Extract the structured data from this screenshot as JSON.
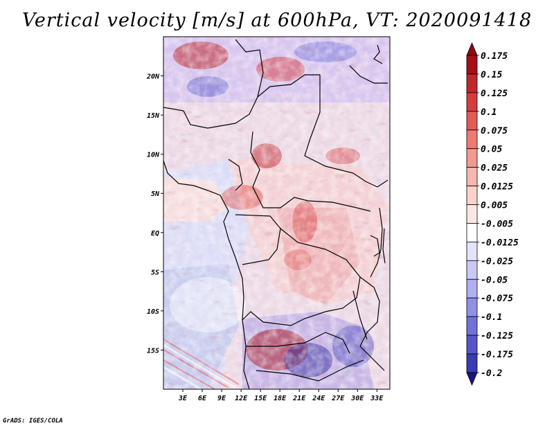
{
  "title": "Vertical velocity [m/s] at 600hPa, VT: 2020091418",
  "credit": "GrADS: IGES/COLA",
  "map": {
    "lon_range": [
      0,
      35
    ],
    "lat_range": [
      -20,
      25
    ],
    "lat_ticks": [
      {
        "value": 20,
        "label": "20N"
      },
      {
        "value": 15,
        "label": "15N"
      },
      {
        "value": 10,
        "label": "10N"
      },
      {
        "value": 5,
        "label": "5N"
      },
      {
        "value": 0,
        "label": "EQ"
      },
      {
        "value": -5,
        "label": "5S"
      },
      {
        "value": -10,
        "label": "10S"
      },
      {
        "value": -15,
        "label": "15S"
      }
    ],
    "lon_ticks": [
      {
        "value": 3,
        "label": "3E"
      },
      {
        "value": 6,
        "label": "6E"
      },
      {
        "value": 9,
        "label": "9E"
      },
      {
        "value": 12,
        "label": "12E"
      },
      {
        "value": 15,
        "label": "15E"
      },
      {
        "value": 18,
        "label": "18E"
      },
      {
        "value": 21,
        "label": "21E"
      },
      {
        "value": 24,
        "label": "24E"
      },
      {
        "value": 27,
        "label": "27E"
      },
      {
        "value": 30,
        "label": "30E"
      },
      {
        "value": 33,
        "label": "33E"
      }
    ]
  },
  "colorbar": {
    "levels": [
      {
        "label": "0.175",
        "color": "#a50f15"
      },
      {
        "label": "0.15",
        "color": "#c0262b"
      },
      {
        "label": "0.125",
        "color": "#d63c3c"
      },
      {
        "label": "0.1",
        "color": "#e45a55"
      },
      {
        "label": "0.075",
        "color": "#ee7a72"
      },
      {
        "label": "0.05",
        "color": "#f39a91"
      },
      {
        "label": "0.025",
        "color": "#f7b7ae"
      },
      {
        "label": "0.0125",
        "color": "#fad2cb"
      },
      {
        "label": "0.005",
        "color": "#fce6e2"
      },
      {
        "label": "-0.005",
        "color": "#ffffff"
      },
      {
        "label": "-0.0125",
        "color": "#e3e3fb"
      },
      {
        "label": "-0.025",
        "color": "#c9c9f6"
      },
      {
        "label": "-0.05",
        "color": "#aeaef0"
      },
      {
        "label": "-0.075",
        "color": "#9090e6"
      },
      {
        "label": "-0.1",
        "color": "#7272d9"
      },
      {
        "label": "-0.125",
        "color": "#5555c9"
      },
      {
        "label": "-0.175",
        "color": "#3a3ab5"
      },
      {
        "label": "-0.2",
        "color": "#26229a"
      }
    ],
    "top_color": "#8b0a10",
    "bottom_color": "#1c1480"
  }
}
